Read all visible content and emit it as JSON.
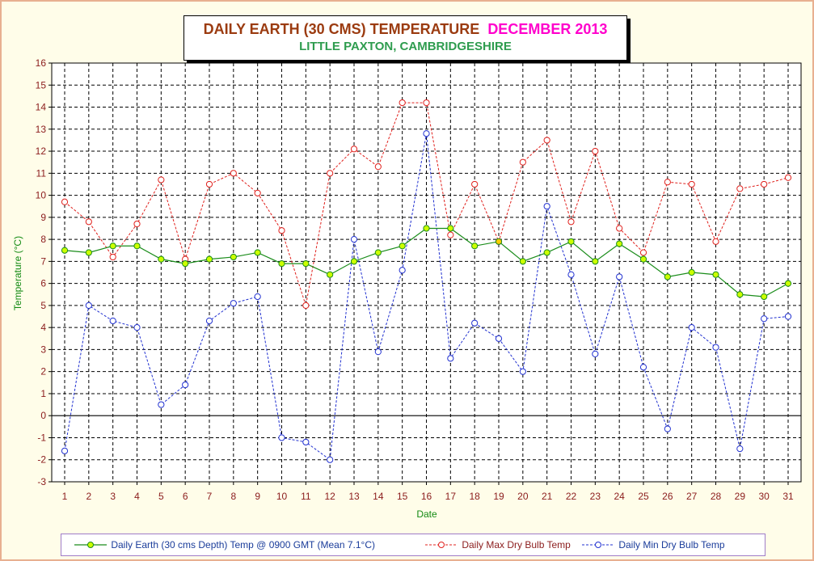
{
  "title": {
    "main": "DAILY EARTH (30 CMS) TEMPERATURE",
    "month": "DECEMBER 2013",
    "subtitle": "LITTLE PAXTON, CAMBRIDGESHIRE"
  },
  "colors": {
    "earth": "#1a8c1a",
    "earth_marker": "#ccff00",
    "earth_highlight": "#ffcc00",
    "max": "#e0201c",
    "min": "#2030d0",
    "grid": "#000000",
    "tick_text": "#8b1c1c"
  },
  "chart_data": {
    "type": "line",
    "xlabel": "Date",
    "ylabel": "Temperature (°C)",
    "ylim": [
      -3,
      16
    ],
    "xlim": [
      1,
      31
    ],
    "grid": true,
    "legend_position": "bottom",
    "x": [
      1,
      2,
      3,
      4,
      5,
      6,
      7,
      8,
      9,
      10,
      11,
      12,
      13,
      14,
      15,
      16,
      17,
      18,
      19,
      20,
      21,
      22,
      23,
      24,
      25,
      26,
      27,
      28,
      29,
      30,
      31
    ],
    "series": [
      {
        "name": "Daily Earth (30 cms Depth) Temp @ 0900 GMT (Mean 7.1°C)",
        "style": "solid",
        "highlight_index": 18,
        "values": [
          7.5,
          7.4,
          7.7,
          7.7,
          7.1,
          6.9,
          7.1,
          7.2,
          7.4,
          6.9,
          6.9,
          6.4,
          7.0,
          7.4,
          7.7,
          8.5,
          8.5,
          7.7,
          7.9,
          7.0,
          7.4,
          7.9,
          7.0,
          7.8,
          7.1,
          6.3,
          6.5,
          6.4,
          5.5,
          5.4,
          6.0
        ]
      },
      {
        "name": "Daily Max Dry Bulb Temp",
        "style": "dashed",
        "values": [
          9.7,
          8.8,
          7.2,
          8.7,
          10.7,
          7.1,
          10.5,
          11.0,
          10.1,
          8.4,
          5.0,
          11.0,
          12.1,
          11.3,
          14.2,
          14.2,
          8.2,
          10.5,
          7.9,
          11.5,
          12.5,
          8.8,
          12.0,
          8.5,
          7.4,
          10.6,
          10.5,
          7.9,
          10.3,
          10.5,
          10.8
        ]
      },
      {
        "name": "Daily Min Dry Bulb Temp",
        "style": "dashed",
        "values": [
          -1.6,
          5.0,
          4.3,
          4.0,
          0.5,
          1.4,
          4.3,
          5.1,
          5.4,
          -1.0,
          -1.2,
          -2.0,
          8.0,
          2.9,
          6.6,
          12.8,
          2.6,
          4.2,
          3.5,
          2.0,
          9.5,
          6.4,
          2.8,
          6.3,
          2.2,
          -0.6,
          4.0,
          3.1,
          -1.5,
          4.4,
          4.5
        ]
      }
    ],
    "yticks": [
      "-3",
      "-2",
      "-1",
      "0",
      "1",
      "2",
      "3",
      "4",
      "5",
      "6",
      "7",
      "8",
      "9",
      "10",
      "11",
      "12",
      "13",
      "14",
      "15",
      "16"
    ],
    "xticks": [
      "1",
      "2",
      "3",
      "4",
      "5",
      "6",
      "7",
      "8",
      "9",
      "10",
      "11",
      "12",
      "13",
      "14",
      "15",
      "16",
      "17",
      "18",
      "19",
      "20",
      "21",
      "22",
      "23",
      "24",
      "25",
      "26",
      "27",
      "28",
      "29",
      "30",
      "31"
    ]
  }
}
